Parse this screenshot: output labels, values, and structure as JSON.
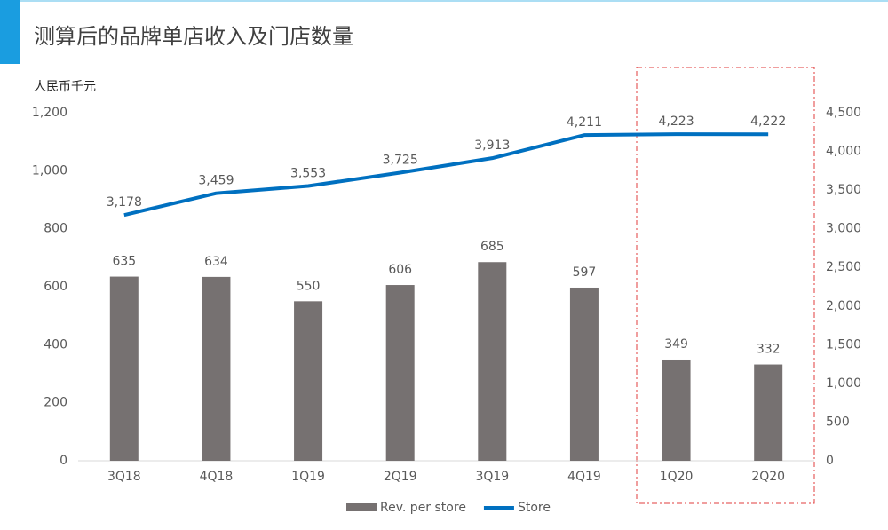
{
  "chart_data": {
    "type": "combo",
    "title": "测算后的品牌单店收入及门店数量",
    "y_label": "人民币千元",
    "categories": [
      "3Q18",
      "4Q18",
      "1Q19",
      "2Q19",
      "3Q19",
      "4Q19",
      "1Q20",
      "2Q20"
    ],
    "series": [
      {
        "name": "Rev. per store",
        "type": "bar",
        "color": "#767171",
        "values": [
          635,
          634,
          550,
          606,
          685,
          597,
          349,
          332
        ]
      },
      {
        "name": "Store",
        "type": "line",
        "axis": "y2",
        "color": "#0070c0",
        "values": [
          3178,
          3459,
          3553,
          3725,
          3913,
          4211,
          4223,
          4222
        ],
        "value_labels": [
          "3,178",
          "3,459",
          "3,553",
          "3,725",
          "3,913",
          "4,211",
          "4,223",
          "4,222"
        ]
      }
    ],
    "ylim": [
      0,
      1200
    ],
    "yticks": [
      0,
      200,
      400,
      600,
      800,
      {
        "value": 1000,
        "label": "1,000"
      },
      {
        "value": 1200,
        "label": "1,200"
      }
    ],
    "y2lim": [
      0,
      4500
    ],
    "y2ticks": [
      0,
      500,
      {
        "value": 1000,
        "label": "1,000"
      },
      {
        "value": 1500,
        "label": "1,500"
      },
      {
        "value": 2000,
        "label": "2,000"
      },
      {
        "value": 2500,
        "label": "2,500"
      },
      {
        "value": 3000,
        "label": "3,000"
      },
      {
        "value": 3500,
        "label": "3,500"
      },
      {
        "value": 4000,
        "label": "4,000"
      },
      {
        "value": 4500,
        "label": "4,500"
      }
    ],
    "legend": "bottom"
  }
}
